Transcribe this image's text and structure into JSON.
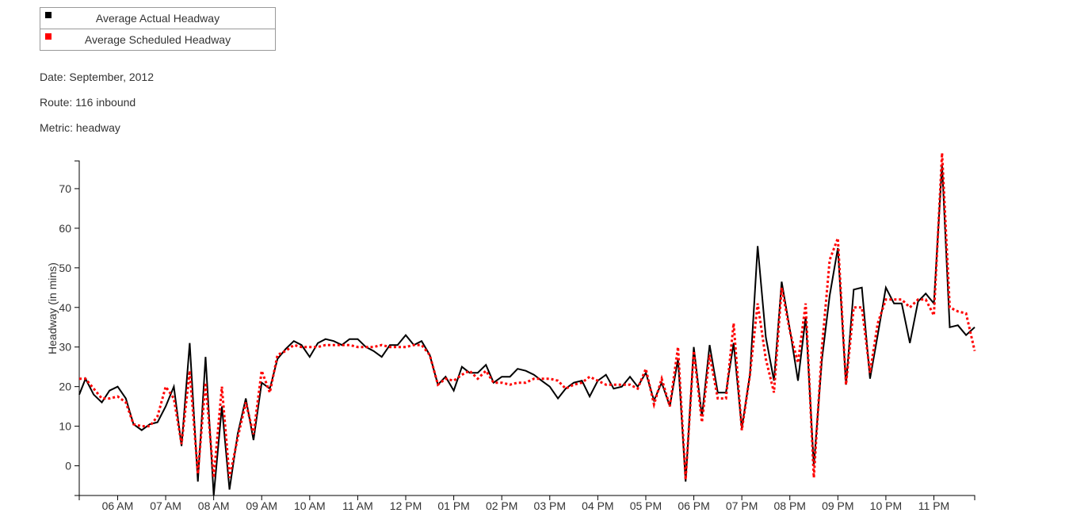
{
  "legend": [
    {
      "label": "Average Actual Headway",
      "color": "#000000"
    },
    {
      "label": "Average Scheduled Headway",
      "color": "#ff0000"
    }
  ],
  "meta": {
    "date_label": "Date:",
    "date_value": "September, 2012",
    "route_label": "Route:",
    "route_value": "116 inbound",
    "metric_label": "Metric:",
    "metric_value": "headway"
  },
  "chart_data": {
    "type": "line",
    "ylabel": "Headway (in mins)",
    "xlabel": "",
    "ylim": [
      -7.5,
      77
    ],
    "xlim": [
      5.2,
      23.85
    ],
    "yticks": [
      0,
      10,
      20,
      30,
      40,
      50,
      60,
      70
    ],
    "xticks": [
      {
        "label": "06 AM",
        "value": 6
      },
      {
        "label": "07 AM",
        "value": 7
      },
      {
        "label": "08 AM",
        "value": 8
      },
      {
        "label": "09 AM",
        "value": 9
      },
      {
        "label": "10 AM",
        "value": 10
      },
      {
        "label": "11 AM",
        "value": 11
      },
      {
        "label": "12 PM",
        "value": 12
      },
      {
        "label": "01 PM",
        "value": 13
      },
      {
        "label": "02 PM",
        "value": 14
      },
      {
        "label": "03 PM",
        "value": 15
      },
      {
        "label": "04 PM",
        "value": 16
      },
      {
        "label": "05 PM",
        "value": 17
      },
      {
        "label": "06 PM",
        "value": 18
      },
      {
        "label": "07 PM",
        "value": 19
      },
      {
        "label": "08 PM",
        "value": 20
      },
      {
        "label": "09 PM",
        "value": 21
      },
      {
        "label": "10 PM",
        "value": 22
      },
      {
        "label": "11 PM",
        "value": 23
      }
    ],
    "series": [
      {
        "name": "Average Actual Headway",
        "color": "#000000",
        "dash": "solid",
        "points": [
          [
            5.2,
            18
          ],
          [
            5.33,
            22
          ],
          [
            5.5,
            18
          ],
          [
            5.67,
            16
          ],
          [
            5.83,
            19
          ],
          [
            6.0,
            20
          ],
          [
            6.17,
            17
          ],
          [
            6.33,
            10.5
          ],
          [
            6.5,
            9
          ],
          [
            6.67,
            10.5
          ],
          [
            6.83,
            11
          ],
          [
            7.0,
            15
          ],
          [
            7.17,
            20
          ],
          [
            7.33,
            5
          ],
          [
            7.5,
            31
          ],
          [
            7.67,
            -4
          ],
          [
            7.83,
            27.5
          ],
          [
            8.0,
            -7.5
          ],
          [
            8.17,
            15
          ],
          [
            8.33,
            -6
          ],
          [
            8.5,
            8
          ],
          [
            8.67,
            17
          ],
          [
            8.83,
            6.5
          ],
          [
            9.0,
            21
          ],
          [
            9.17,
            19.5
          ],
          [
            9.33,
            27
          ],
          [
            9.5,
            29.5
          ],
          [
            9.67,
            31.5
          ],
          [
            9.83,
            30.5
          ],
          [
            10.0,
            27.5
          ],
          [
            10.17,
            31
          ],
          [
            10.33,
            32
          ],
          [
            10.5,
            31.5
          ],
          [
            10.67,
            30.5
          ],
          [
            10.83,
            32
          ],
          [
            11.0,
            32
          ],
          [
            11.17,
            30
          ],
          [
            11.33,
            29
          ],
          [
            11.5,
            27.5
          ],
          [
            11.67,
            30.5
          ],
          [
            11.83,
            30.5
          ],
          [
            12.0,
            33
          ],
          [
            12.17,
            30.5
          ],
          [
            12.33,
            31.5
          ],
          [
            12.5,
            28
          ],
          [
            12.67,
            20.5
          ],
          [
            12.83,
            22.5
          ],
          [
            13.0,
            19
          ],
          [
            13.17,
            25
          ],
          [
            13.33,
            23.5
          ],
          [
            13.5,
            23.5
          ],
          [
            13.67,
            25.5
          ],
          [
            13.83,
            21
          ],
          [
            14.0,
            22.5
          ],
          [
            14.17,
            22.5
          ],
          [
            14.33,
            24.5
          ],
          [
            14.5,
            24
          ],
          [
            14.67,
            23
          ],
          [
            14.83,
            21.5
          ],
          [
            15.0,
            20
          ],
          [
            15.17,
            17
          ],
          [
            15.33,
            19.5
          ],
          [
            15.5,
            21
          ],
          [
            15.67,
            21.5
          ],
          [
            15.83,
            17.5
          ],
          [
            16.0,
            21.5
          ],
          [
            16.17,
            23
          ],
          [
            16.33,
            19.5
          ],
          [
            16.5,
            20
          ],
          [
            16.67,
            22.5
          ],
          [
            16.83,
            20
          ],
          [
            17.0,
            23.5
          ],
          [
            17.17,
            16.5
          ],
          [
            17.33,
            21
          ],
          [
            17.5,
            15
          ],
          [
            17.67,
            27
          ],
          [
            17.83,
            -4
          ],
          [
            18.0,
            30
          ],
          [
            18.17,
            12.5
          ],
          [
            18.33,
            30.5
          ],
          [
            18.5,
            18.5
          ],
          [
            18.67,
            18.5
          ],
          [
            18.83,
            31
          ],
          [
            19.0,
            9.5
          ],
          [
            19.17,
            23
          ],
          [
            19.33,
            55.5
          ],
          [
            19.5,
            32.5
          ],
          [
            19.67,
            21.5
          ],
          [
            19.83,
            46.5
          ],
          [
            20.0,
            34.5
          ],
          [
            20.17,
            21.5
          ],
          [
            20.33,
            37.5
          ],
          [
            20.5,
            0
          ],
          [
            20.67,
            27
          ],
          [
            20.83,
            43
          ],
          [
            21.0,
            55
          ],
          [
            21.17,
            20.5
          ],
          [
            21.33,
            44.5
          ],
          [
            21.5,
            45
          ],
          [
            21.67,
            22
          ],
          [
            21.83,
            33
          ],
          [
            22.0,
            45
          ],
          [
            22.17,
            41
          ],
          [
            22.33,
            41
          ],
          [
            22.5,
            31
          ],
          [
            22.67,
            41.5
          ],
          [
            22.83,
            43.5
          ],
          [
            23.0,
            41
          ],
          [
            23.17,
            76
          ],
          [
            23.33,
            35
          ],
          [
            23.5,
            35.5
          ],
          [
            23.67,
            33
          ],
          [
            23.85,
            35
          ]
        ]
      },
      {
        "name": "Average Scheduled Headway",
        "color": "#ff0000",
        "dash": "dotted",
        "points": [
          [
            5.2,
            22
          ],
          [
            5.33,
            22
          ],
          [
            5.5,
            19.5
          ],
          [
            5.67,
            17
          ],
          [
            5.83,
            17
          ],
          [
            6.0,
            17.5
          ],
          [
            6.17,
            16
          ],
          [
            6.33,
            10.5
          ],
          [
            6.5,
            10
          ],
          [
            6.67,
            10
          ],
          [
            6.83,
            12.5
          ],
          [
            7.0,
            20
          ],
          [
            7.17,
            17
          ],
          [
            7.33,
            5.5
          ],
          [
            7.5,
            24
          ],
          [
            7.67,
            -2
          ],
          [
            7.83,
            21
          ],
          [
            8.0,
            -3
          ],
          [
            8.17,
            20
          ],
          [
            8.33,
            -3
          ],
          [
            8.5,
            7
          ],
          [
            8.67,
            16
          ],
          [
            8.83,
            8
          ],
          [
            9.0,
            24
          ],
          [
            9.17,
            18.5
          ],
          [
            9.33,
            28
          ],
          [
            9.5,
            29
          ],
          [
            9.67,
            30.5
          ],
          [
            9.83,
            30
          ],
          [
            10.0,
            30
          ],
          [
            10.17,
            30
          ],
          [
            10.33,
            30.5
          ],
          [
            10.5,
            30.5
          ],
          [
            10.67,
            30.5
          ],
          [
            10.83,
            30.5
          ],
          [
            11.0,
            30
          ],
          [
            11.17,
            30
          ],
          [
            11.33,
            30
          ],
          [
            11.5,
            30.5
          ],
          [
            11.67,
            30
          ],
          [
            11.83,
            30
          ],
          [
            12.0,
            30
          ],
          [
            12.17,
            30.5
          ],
          [
            12.33,
            30.5
          ],
          [
            12.5,
            28
          ],
          [
            12.67,
            20.5
          ],
          [
            12.83,
            22
          ],
          [
            13.0,
            21.5
          ],
          [
            13.17,
            23
          ],
          [
            13.33,
            24
          ],
          [
            13.5,
            22
          ],
          [
            13.67,
            24
          ],
          [
            13.83,
            21
          ],
          [
            14.0,
            21
          ],
          [
            14.17,
            20.5
          ],
          [
            14.33,
            21
          ],
          [
            14.5,
            21
          ],
          [
            14.67,
            22
          ],
          [
            14.83,
            22
          ],
          [
            15.0,
            22
          ],
          [
            15.17,
            21.5
          ],
          [
            15.33,
            19.5
          ],
          [
            15.5,
            20.5
          ],
          [
            15.67,
            21
          ],
          [
            15.83,
            22.5
          ],
          [
            16.0,
            21.5
          ],
          [
            16.17,
            20.5
          ],
          [
            16.33,
            20.5
          ],
          [
            16.5,
            20.5
          ],
          [
            16.67,
            20.5
          ],
          [
            16.83,
            19.5
          ],
          [
            17.0,
            24.5
          ],
          [
            17.17,
            15.5
          ],
          [
            17.33,
            22
          ],
          [
            17.5,
            15
          ],
          [
            17.67,
            30
          ],
          [
            17.83,
            -3.5
          ],
          [
            18.0,
            29
          ],
          [
            18.17,
            11
          ],
          [
            18.33,
            28
          ],
          [
            18.5,
            17
          ],
          [
            18.67,
            17
          ],
          [
            18.83,
            36
          ],
          [
            19.0,
            9
          ],
          [
            19.17,
            23
          ],
          [
            19.33,
            41
          ],
          [
            19.5,
            27
          ],
          [
            19.67,
            18.5
          ],
          [
            19.83,
            45
          ],
          [
            20.0,
            34
          ],
          [
            20.17,
            26
          ],
          [
            20.33,
            41
          ],
          [
            20.5,
            -3
          ],
          [
            20.67,
            30
          ],
          [
            20.83,
            52
          ],
          [
            21.0,
            57.5
          ],
          [
            21.17,
            20.5
          ],
          [
            21.33,
            40
          ],
          [
            21.5,
            40
          ],
          [
            21.67,
            23.5
          ],
          [
            21.83,
            36
          ],
          [
            22.0,
            42
          ],
          [
            22.17,
            42
          ],
          [
            22.33,
            42
          ],
          [
            22.5,
            40
          ],
          [
            22.67,
            42
          ],
          [
            22.83,
            42
          ],
          [
            23.0,
            38
          ],
          [
            23.17,
            79
          ],
          [
            23.33,
            40
          ],
          [
            23.5,
            39
          ],
          [
            23.67,
            38.5
          ],
          [
            23.85,
            29
          ]
        ]
      }
    ]
  }
}
